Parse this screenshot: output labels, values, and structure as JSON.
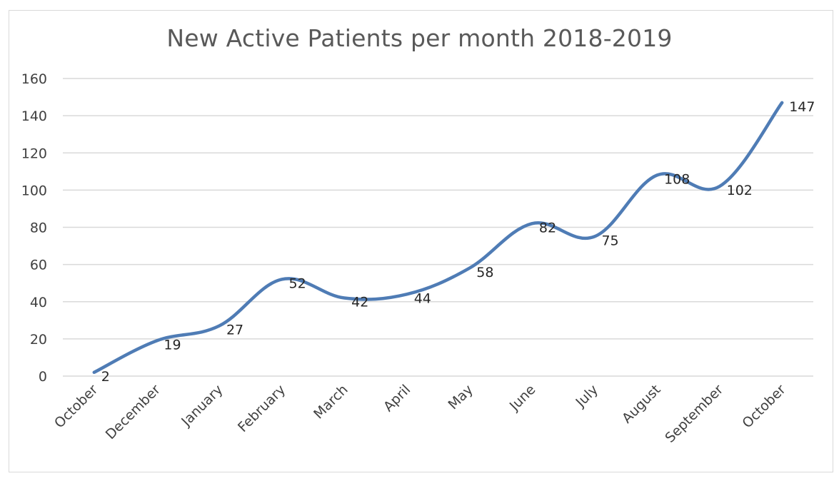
{
  "chart_data": {
    "type": "line",
    "title": "New Active Patients per month 2018-2019",
    "xlabel": "",
    "ylabel": "",
    "categories": [
      "October",
      "December",
      "January",
      "February",
      "March",
      "April",
      "May",
      "June",
      "July",
      "August",
      "September",
      "October"
    ],
    "series": [
      {
        "values": [
          2,
          19,
          27,
          52,
          42,
          44,
          58,
          82,
          75,
          108,
          102,
          147
        ]
      }
    ],
    "ylim": [
      0,
      160
    ],
    "yticks": [
      0,
      20,
      40,
      60,
      80,
      100,
      120,
      140,
      160
    ],
    "grid": true,
    "smooth": true,
    "data_labels": true,
    "legend": "none",
    "line_color": "#4f7cb5",
    "grid_color": "#d9d9d9",
    "title_color": "#595959"
  }
}
